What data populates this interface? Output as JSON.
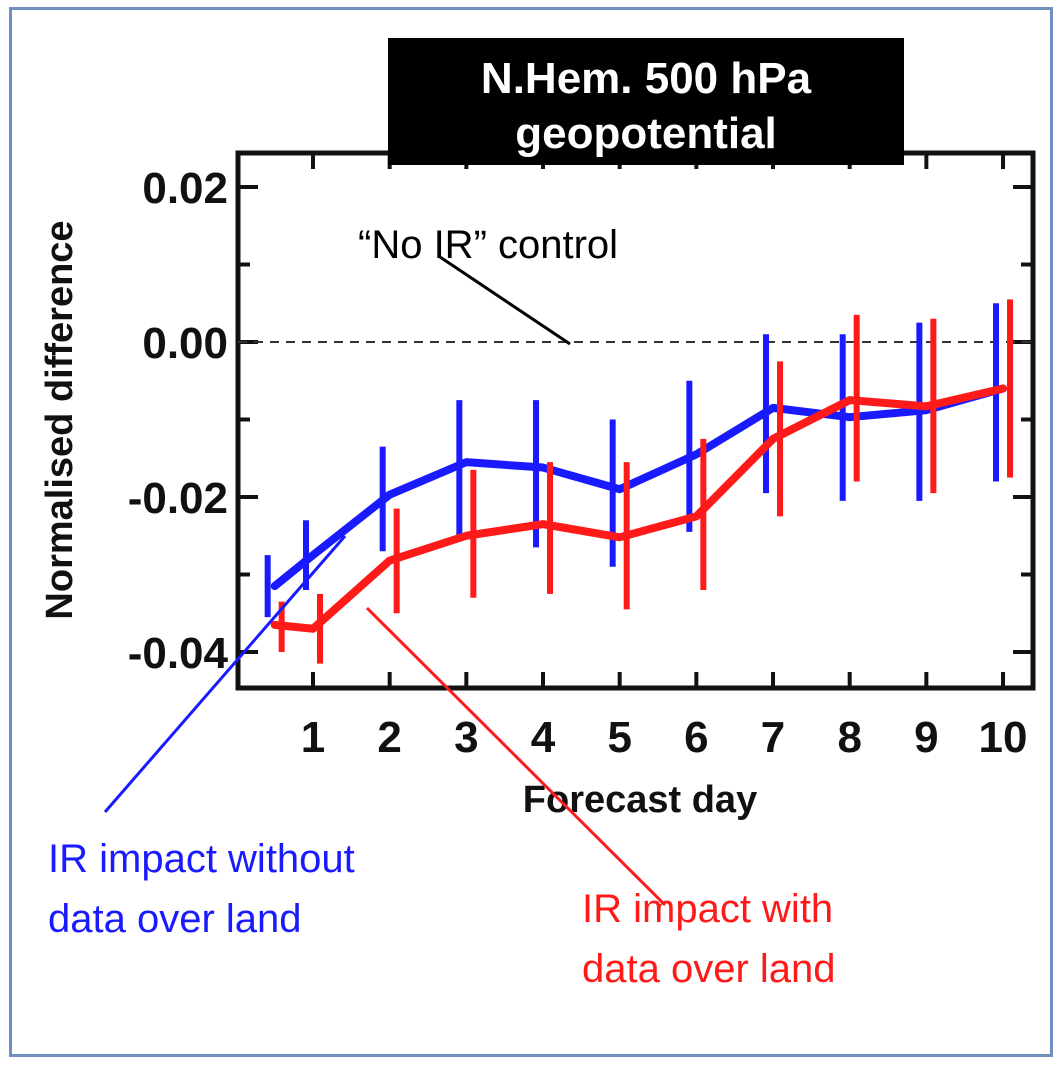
{
  "chart_data": {
    "type": "line",
    "title_lines": [
      "N.Hem. 500 hPa",
      "geopotential"
    ],
    "xlabel": "Forecast day",
    "ylabel": "Normalised difference",
    "x_ticks": [
      1,
      2,
      3,
      4,
      5,
      6,
      7,
      8,
      9,
      10
    ],
    "y_ticks": [
      0.02,
      0.0,
      -0.02,
      -0.04
    ],
    "y_tick_labels": [
      "0.02",
      "0.00",
      "-0.02",
      "-0.04"
    ],
    "xlim": [
      0,
      10.5
    ],
    "ylim": [
      -0.045,
      0.025
    ],
    "reference_line": {
      "y": 0.0,
      "style": "dashed",
      "label": "“No IR” control"
    },
    "series": [
      {
        "color": "#1a1aff",
        "x": [
          0.5,
          1,
          2,
          3,
          4,
          5,
          6,
          7,
          8,
          9,
          10
        ],
        "y": [
          -0.0315,
          -0.0275,
          -0.0197,
          -0.0155,
          -0.0162,
          -0.019,
          -0.0145,
          -0.0085,
          -0.0097,
          -0.0088,
          -0.006
        ],
        "err_low": [
          -0.0355,
          -0.032,
          -0.027,
          -0.025,
          -0.0265,
          -0.029,
          -0.0245,
          -0.0195,
          -0.0205,
          -0.0205,
          -0.018
        ],
        "err_high": [
          -0.0275,
          -0.023,
          -0.0135,
          -0.0075,
          -0.0075,
          -0.01,
          -0.005,
          0.001,
          0.001,
          0.0025,
          0.005
        ]
      },
      {
        "color": "#ff1a1a",
        "x": [
          0.5,
          1,
          2,
          3,
          4,
          5,
          6,
          7,
          8,
          9,
          10
        ],
        "y": [
          -0.0365,
          -0.037,
          -0.0282,
          -0.025,
          -0.0235,
          -0.0252,
          -0.0225,
          -0.0125,
          -0.0075,
          -0.0083,
          -0.006
        ],
        "err_low": [
          -0.04,
          -0.0415,
          -0.035,
          -0.033,
          -0.0325,
          -0.0345,
          -0.032,
          -0.0225,
          -0.018,
          -0.0195,
          -0.0175
        ],
        "err_high": [
          -0.0335,
          -0.0325,
          -0.0215,
          -0.0165,
          -0.0155,
          -0.0155,
          -0.0125,
          -0.0025,
          0.0035,
          0.003,
          0.0055
        ]
      }
    ],
    "annotations": [
      {
        "text_lines": [
          "IR impact without",
          "data over land"
        ],
        "color": "#1a1aff"
      },
      {
        "text_lines": [
          "IR impact with",
          "data over land"
        ],
        "color": "#ff1a1a"
      }
    ]
  }
}
